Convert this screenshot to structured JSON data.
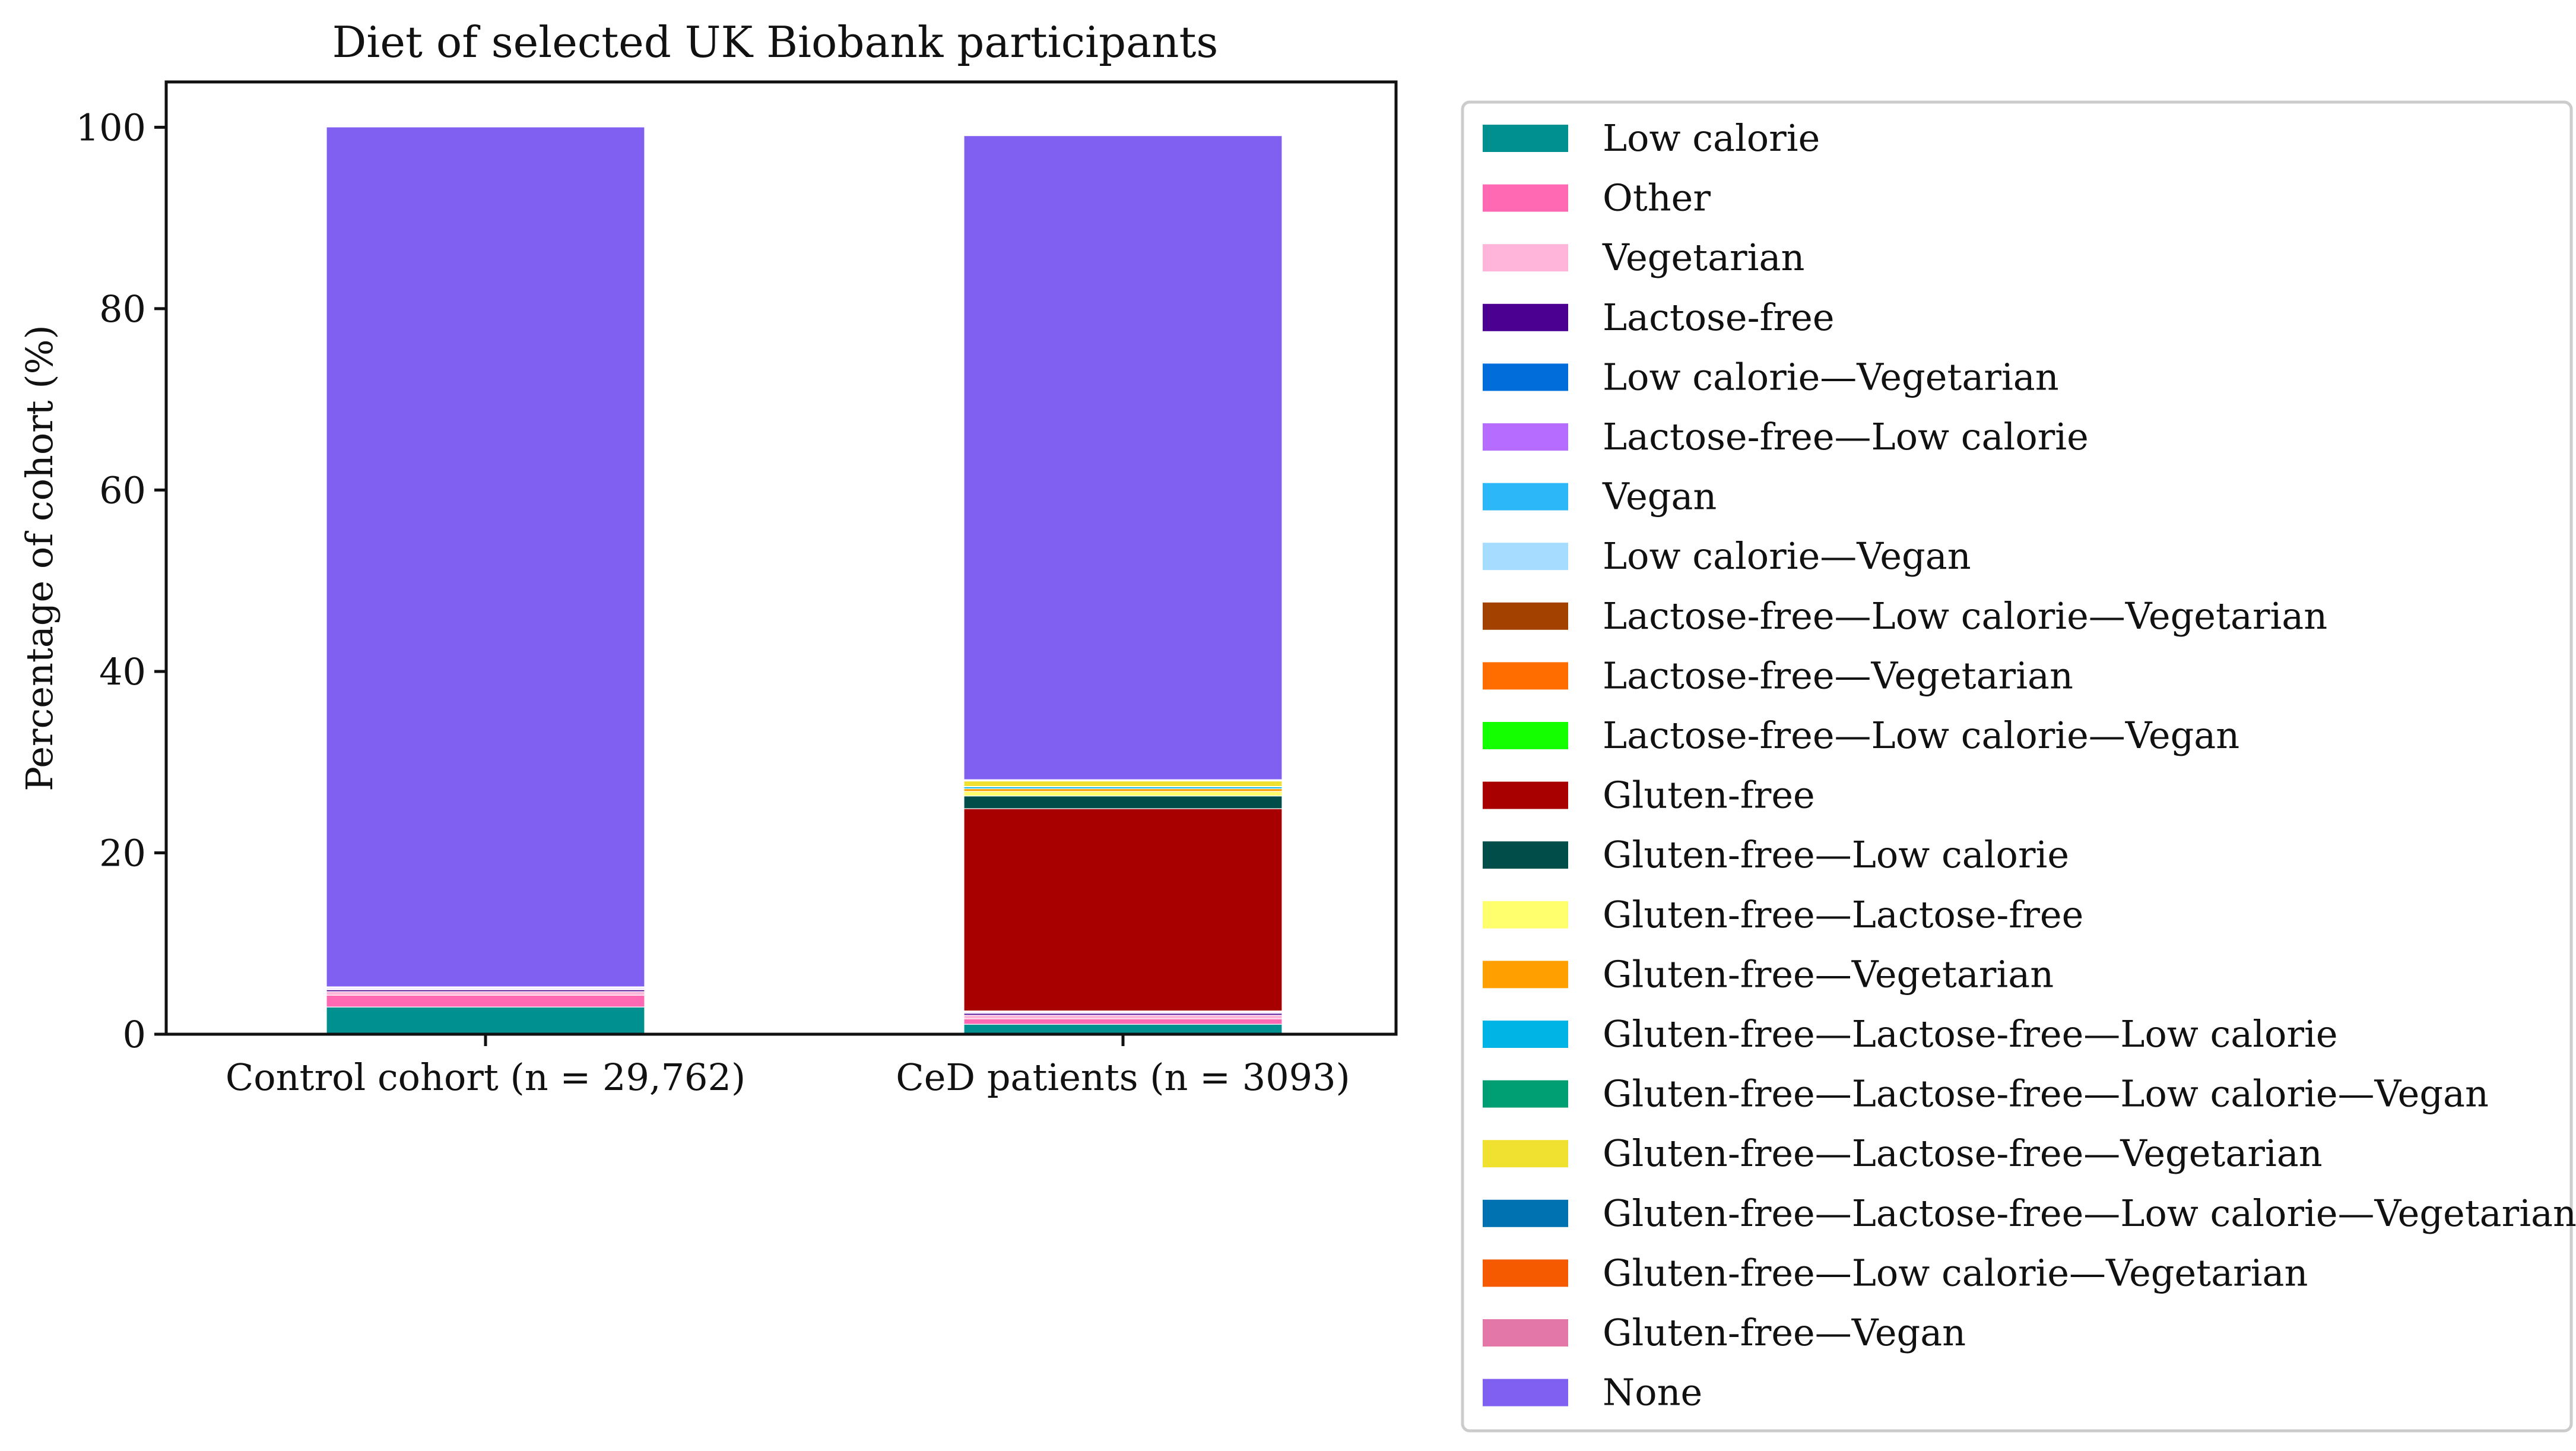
{
  "chart_data": {
    "type": "bar",
    "stacked": true,
    "title": "Diet of selected UK Biobank participants",
    "ylabel": "Percentage of cohort (%)",
    "xlabel": "",
    "ylim": [
      0,
      105
    ],
    "yticks": [
      "0",
      "20",
      "40",
      "60",
      "80",
      "100"
    ],
    "categories": [
      "Control cohort (n = 29,762)",
      "CeD patients (n = 3093)"
    ],
    "grid": false,
    "legend_position": "right",
    "series": [
      {
        "name": "Low calorie",
        "color": "#009090",
        "values": [
          3.0,
          1.1
        ]
      },
      {
        "name": "Other",
        "color": "#ff69b4",
        "values": [
          1.3,
          0.6
        ]
      },
      {
        "name": "Vegetarian",
        "color": "#ffb5d9",
        "values": [
          0.4,
          0.4
        ]
      },
      {
        "name": "Lactose-free",
        "color": "#4b0092",
        "values": [
          0.2,
          0.2
        ]
      },
      {
        "name": "Low calorie—Vegetarian",
        "color": "#006ddb",
        "values": [
          0.05,
          0.05
        ]
      },
      {
        "name": "Lactose-free—Low calorie",
        "color": "#b66dff",
        "values": [
          0.1,
          0.1
        ]
      },
      {
        "name": "Vegan",
        "color": "#2cb7f8",
        "values": [
          0.05,
          0.05
        ]
      },
      {
        "name": "Low calorie—Vegan",
        "color": "#a6dcff",
        "values": [
          0.02,
          0.02
        ]
      },
      {
        "name": "Lactose-free—Low calorie—Vegetarian",
        "color": "#a34200",
        "values": [
          0.02,
          0.02
        ]
      },
      {
        "name": "Lactose-free—Vegetarian",
        "color": "#ff6d00",
        "values": [
          0.02,
          0.02
        ]
      },
      {
        "name": "Lactose-free—Low calorie—Vegan",
        "color": "#14ff00",
        "values": [
          0.01,
          0.01
        ]
      },
      {
        "name": "Gluten-free",
        "color": "#a80000",
        "values": [
          0.05,
          22.3
        ]
      },
      {
        "name": "Gluten-free—Low calorie",
        "color": "#004d4a",
        "values": [
          0.01,
          1.4
        ]
      },
      {
        "name": "Gluten-free—Lactose-free",
        "color": "#ffff6d",
        "values": [
          0.0,
          0.5
        ]
      },
      {
        "name": "Gluten-free—Vegetarian",
        "color": "#ffa000",
        "values": [
          0.0,
          0.3
        ]
      },
      {
        "name": "Gluten-free—Lactose-free—Low calorie",
        "color": "#00b4e6",
        "values": [
          0.0,
          0.2
        ]
      },
      {
        "name": "Gluten-free—Lactose-free—Low calorie—Vegan",
        "color": "#009e73",
        "values": [
          0.0,
          0.05
        ]
      },
      {
        "name": "Gluten-free—Lactose-free—Vegetarian",
        "color": "#f0e030",
        "values": [
          0.0,
          0.6
        ]
      },
      {
        "name": "Gluten-free—Lactose-free—Low calorie—Vegetarian",
        "color": "#0072b2",
        "values": [
          0.0,
          0.05
        ]
      },
      {
        "name": "Gluten-free—Low calorie—Vegetarian",
        "color": "#f55a00",
        "values": [
          0.0,
          0.05
        ]
      },
      {
        "name": "Gluten-free—Vegan",
        "color": "#e377a8",
        "values": [
          0.0,
          0.05
        ]
      },
      {
        "name": "None",
        "color": "#8060f0",
        "values": [
          94.8,
          71.0
        ]
      }
    ]
  }
}
